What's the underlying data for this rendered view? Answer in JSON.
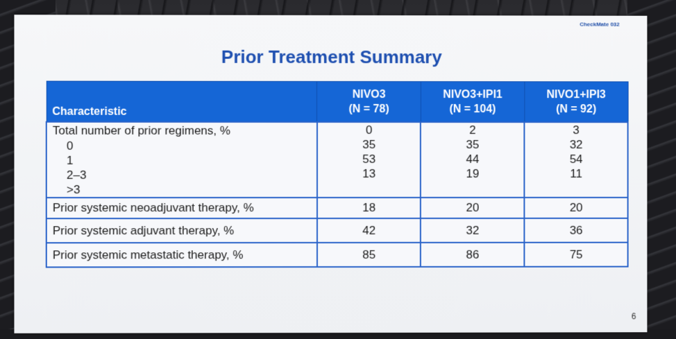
{
  "slide": {
    "brand": "CheckMate 032",
    "title": "Prior Treatment Summary",
    "page_number": "6"
  },
  "table": {
    "headers": {
      "characteristic": "Characteristic",
      "arms": [
        {
          "name": "NIVO3",
          "n": "(N = 78)"
        },
        {
          "name": "NIVO3+IPI1",
          "n": "(N = 104)"
        },
        {
          "name": "NIVO1+IPI3",
          "n": "(N = 92)"
        }
      ]
    },
    "regimens": {
      "label": "Total number of prior regimens, %",
      "sublabels": [
        "0",
        "1",
        "2–3",
        ">3"
      ],
      "values": [
        [
          "0",
          "35",
          "53",
          "13"
        ],
        [
          "2",
          "35",
          "44",
          "19"
        ],
        [
          "3",
          "32",
          "54",
          "11"
        ]
      ]
    },
    "rows": [
      {
        "label": "Prior systemic neoadjuvant therapy, %",
        "values": [
          "18",
          "20",
          "20"
        ]
      },
      {
        "label": "Prior systemic adjuvant therapy, %",
        "values": [
          "42",
          "32",
          "36"
        ]
      },
      {
        "label": "Prior systemic metastatic therapy, %",
        "values": [
          "85",
          "86",
          "75"
        ]
      }
    ]
  },
  "colors": {
    "header_blue": "#1566d6",
    "title_blue": "#1e4fb0"
  }
}
